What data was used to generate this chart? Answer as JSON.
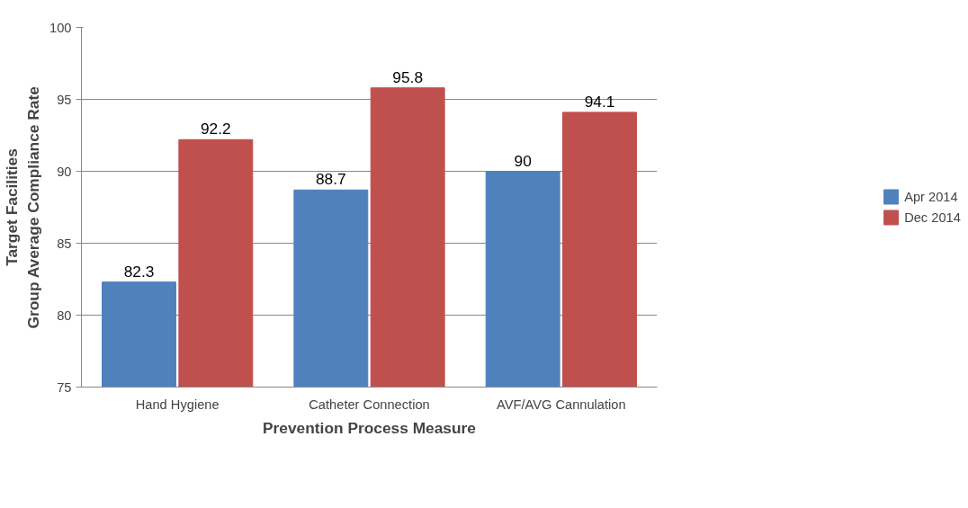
{
  "chart_data": {
    "type": "bar",
    "xlabel": "Prevention Process Measure",
    "ylabel": "Target Facilities\nGroup Average Compliance Rate",
    "categories": [
      "Hand Hygiene",
      "Catheter Connection",
      "AVF/AVG Cannulation"
    ],
    "series": [
      {
        "name": "Apr 2014",
        "color": "#4f81bd",
        "values": [
          82.3,
          88.7,
          90
        ]
      },
      {
        "name": "Dec 2014",
        "color": "#c0504d",
        "values": [
          92.2,
          95.8,
          94.1
        ]
      }
    ],
    "ylim": [
      75,
      100
    ],
    "yticks": [
      75,
      80,
      85,
      90,
      95,
      100
    ],
    "grid": "y",
    "legend": "right",
    "data_labels": true
  }
}
